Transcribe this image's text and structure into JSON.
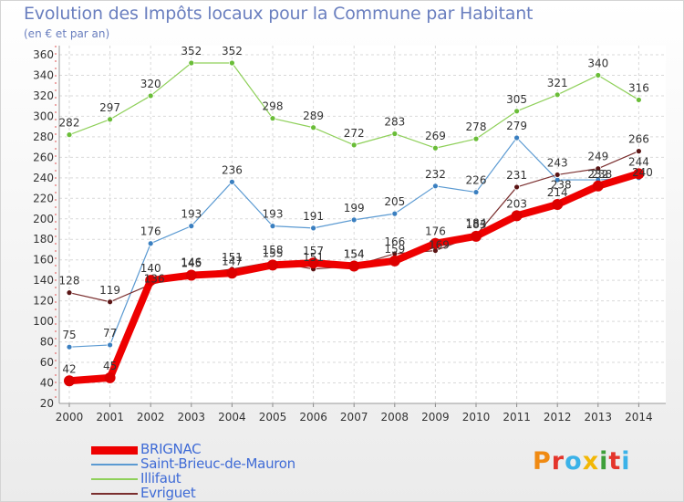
{
  "title": "Evolution des Impôts locaux pour la Commune par Habitant",
  "subtitle": "(en € et par an)",
  "logo": {
    "text": "Proxiti",
    "colors": [
      "#f08a12",
      "#e4352b",
      "#3bb2e8",
      "#f2b705",
      "#3e9f3a",
      "#e4352b",
      "#3bb2e8"
    ]
  },
  "chart_data": {
    "type": "line",
    "title": "Evolution des Impôts locaux pour la Commune par Habitant",
    "subtitle": "(en € et par an)",
    "x": [
      "2000",
      "2001",
      "2002",
      "2003",
      "2004",
      "2005",
      "2006",
      "2007",
      "2008",
      "2009",
      "2010",
      "2011",
      "2012",
      "2013",
      "2014"
    ],
    "ylim": [
      20,
      360
    ],
    "yticks": [
      "20",
      "40",
      "60",
      "80",
      "100",
      "120",
      "140",
      "160",
      "180",
      "200",
      "220",
      "240",
      "260",
      "280",
      "300",
      "320",
      "340",
      "360"
    ],
    "grid": true,
    "legend_position": "bottom-left",
    "series": [
      {
        "name": "Illifaut",
        "color": "#8fd05a",
        "marker": "#6abd38",
        "width": 1.2,
        "values": [
          282,
          297,
          320,
          352,
          352,
          298,
          289,
          272,
          283,
          269,
          278,
          305,
          321,
          340,
          316
        ],
        "labels": [
          "282",
          "297",
          "320",
          "352",
          "352",
          "298",
          "289",
          "272",
          "283",
          "269",
          "278",
          "305",
          "321",
          "340",
          "316"
        ]
      },
      {
        "name": "Saint-Brieuc-de-Mauron",
        "color": "#5b9ad2",
        "marker": "#3a7fc0",
        "width": 1.2,
        "values": [
          75,
          77,
          176,
          193,
          236,
          193,
          191,
          199,
          205,
          232,
          226,
          279,
          238,
          238,
          240
        ],
        "labels": [
          "75",
          "77",
          "176",
          "193",
          "236",
          "193",
          "191",
          "199",
          "205",
          "232",
          "226",
          "279",
          "",
          "",
          ""
        ]
      },
      {
        "name": "Evriguet",
        "color": "#7a2e2e",
        "marker": "#5a1414",
        "width": 1.2,
        "values": [
          128,
          119,
          136,
          146,
          151,
          158,
          151,
          154,
          166,
          169,
          184,
          231,
          243,
          249,
          266
        ],
        "labels": [
          "128",
          "119",
          "",
          "146",
          "151",
          "158",
          "151",
          "154",
          "166",
          "",
          "184",
          "231",
          "243",
          "249",
          "266"
        ]
      },
      {
        "name": "BRIGNAC",
        "color": "#ee0000",
        "marker": "#dd0000",
        "width": 8,
        "values": [
          42,
          45,
          140,
          145,
          147,
          155,
          157,
          154,
          159,
          176,
          183,
          203,
          214,
          232,
          244
        ],
        "labels": [
          "42",
          "45",
          "140",
          "145",
          "147",
          "155",
          "157",
          "154",
          "159",
          "176",
          "183",
          "203",
          "214",
          "232",
          "244"
        ]
      }
    ],
    "extra_labels": [
      "136",
      "169",
      "238",
      "238",
      "240"
    ]
  }
}
